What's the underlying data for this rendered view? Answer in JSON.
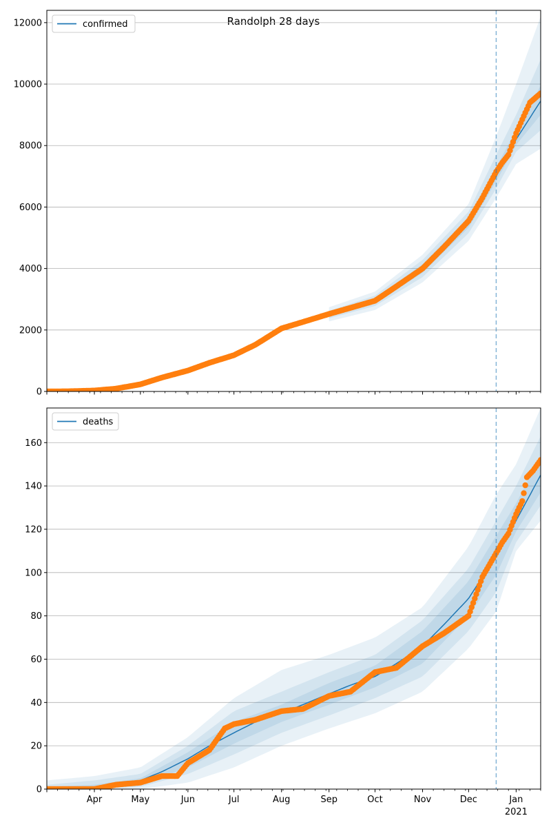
{
  "title": "Randolph 28 days",
  "chart_data": [
    {
      "type": "line",
      "panel": "confirmed",
      "title": "Randolph 28 days",
      "legend": {
        "label": "confirmed",
        "placement": "top-left"
      },
      "ylim": [
        0,
        12400
      ],
      "yticks": [
        0,
        2000,
        4000,
        6000,
        8000,
        10000,
        12000
      ],
      "grid": "horizontal",
      "forecast_start": "2020-12-19",
      "x_range": [
        "2020-03-01",
        "2021-01-17"
      ],
      "colors": {
        "model": "#1f77b4",
        "observed": "#ff7f0e",
        "band": "#1f77b4"
      },
      "model": {
        "dates": [
          "2020-03-01",
          "2020-03-15",
          "2020-04-01",
          "2020-04-15",
          "2020-05-01",
          "2020-05-15",
          "2020-06-01",
          "2020-06-15",
          "2020-07-01",
          "2020-07-15",
          "2020-08-01",
          "2020-08-15",
          "2020-09-01",
          "2020-09-15",
          "2020-10-01",
          "2020-10-15",
          "2020-11-01",
          "2020-11-15",
          "2020-12-01",
          "2020-12-10",
          "2020-12-19",
          "2021-01-01",
          "2021-01-17"
        ],
        "values": [
          0,
          5,
          20,
          80,
          200,
          400,
          650,
          900,
          1150,
          1500,
          2000,
          2250,
          2500,
          2700,
          2950,
          3400,
          4000,
          4700,
          5500,
          6200,
          7000,
          8200,
          9450
        ]
      },
      "bands": [
        {
          "dates": [
            "2020-09-01",
            "2020-10-01",
            "2020-11-01",
            "2020-12-01",
            "2020-12-19",
            "2021-01-01",
            "2021-01-17"
          ],
          "lower": [
            2280,
            2650,
            3550,
            4900,
            6300,
            7400,
            7900
          ],
          "upper": [
            2740,
            3250,
            4450,
            6100,
            8300,
            10000,
            12200
          ]
        },
        {
          "dates": [
            "2020-09-01",
            "2020-10-01",
            "2020-11-01",
            "2020-12-01",
            "2020-12-19",
            "2021-01-01",
            "2021-01-17"
          ],
          "lower": [
            2380,
            2780,
            3720,
            5150,
            6600,
            7800,
            8500
          ],
          "upper": [
            2620,
            3120,
            4280,
            5850,
            7700,
            9000,
            10800
          ]
        },
        {
          "dates": [
            "2020-09-01",
            "2020-10-01",
            "2020-11-01",
            "2020-12-01",
            "2020-12-19",
            "2021-01-01",
            "2021-01-17"
          ],
          "lower": [
            2450,
            2870,
            3860,
            5330,
            6830,
            8020,
            9000
          ],
          "upper": [
            2550,
            3030,
            4140,
            5670,
            7300,
            8500,
            9950
          ]
        }
      ],
      "observed": {
        "dates": [
          "2020-03-01",
          "2020-03-15",
          "2020-04-01",
          "2020-04-15",
          "2020-05-01",
          "2020-05-15",
          "2020-06-01",
          "2020-06-15",
          "2020-07-01",
          "2020-07-15",
          "2020-08-01",
          "2020-08-15",
          "2020-09-01",
          "2020-09-15",
          "2020-10-01",
          "2020-10-15",
          "2020-11-01",
          "2020-11-15",
          "2020-12-01",
          "2020-12-10",
          "2020-12-19",
          "2020-12-23",
          "2020-12-27",
          "2021-01-01",
          "2021-01-05",
          "2021-01-10",
          "2021-01-17"
        ],
        "values": [
          0,
          5,
          30,
          90,
          230,
          450,
          680,
          930,
          1180,
          1520,
          2050,
          2260,
          2520,
          2720,
          2950,
          3420,
          4000,
          4700,
          5550,
          6300,
          7150,
          7450,
          7700,
          8400,
          8850,
          9400,
          9700
        ]
      }
    },
    {
      "type": "line",
      "panel": "deaths",
      "legend": {
        "label": "deaths",
        "placement": "top-left"
      },
      "ylim": [
        0,
        176
      ],
      "yticks": [
        0,
        20,
        40,
        60,
        80,
        100,
        120,
        140,
        160
      ],
      "xticks": [
        "Apr",
        "May",
        "Jun",
        "Jul",
        "Aug",
        "Sep",
        "Oct",
        "Nov",
        "Dec",
        "Jan"
      ],
      "xtick_year": "2021",
      "grid": "horizontal",
      "forecast_start": "2020-12-19",
      "x_range": [
        "2020-03-01",
        "2021-01-17"
      ],
      "colors": {
        "model": "#1f77b4",
        "observed": "#ff7f0e",
        "band": "#1f77b4"
      },
      "model": {
        "dates": [
          "2020-03-01",
          "2020-04-01",
          "2020-04-15",
          "2020-05-01",
          "2020-05-15",
          "2020-06-01",
          "2020-06-15",
          "2020-07-01",
          "2020-07-15",
          "2020-08-01",
          "2020-08-15",
          "2020-09-01",
          "2020-09-15",
          "2020-10-01",
          "2020-10-15",
          "2020-11-01",
          "2020-11-15",
          "2020-12-01",
          "2020-12-10",
          "2020-12-19",
          "2021-01-01",
          "2021-01-17"
        ],
        "values": [
          0,
          1,
          2,
          4,
          8,
          14,
          20,
          26,
          31,
          35,
          39,
          44,
          48,
          52,
          58,
          66,
          76,
          88,
          98,
          108,
          124,
          145
        ]
      },
      "bands": [
        {
          "dates": [
            "2020-03-01",
            "2020-04-01",
            "2020-05-01",
            "2020-06-01",
            "2020-07-01",
            "2020-08-01",
            "2020-09-01",
            "2020-10-01",
            "2020-11-01",
            "2020-12-01",
            "2020-12-19",
            "2021-01-01",
            "2021-01-17"
          ],
          "lower": [
            0,
            0,
            0,
            3,
            10,
            20,
            28,
            35,
            45,
            65,
            82,
            110,
            124
          ],
          "upper": [
            4,
            6,
            10,
            24,
            42,
            55,
            62,
            70,
            84,
            112,
            136,
            150,
            176
          ]
        },
        {
          "dates": [
            "2020-03-01",
            "2020-04-01",
            "2020-05-01",
            "2020-06-01",
            "2020-07-01",
            "2020-08-01",
            "2020-09-01",
            "2020-10-01",
            "2020-11-01",
            "2020-12-01",
            "2020-12-19",
            "2021-01-01",
            "2021-01-17"
          ],
          "lower": [
            0,
            0,
            1,
            7,
            16,
            26,
            34,
            42,
            52,
            73,
            91,
            114,
            131
          ],
          "upper": [
            2,
            4,
            7,
            20,
            36,
            45,
            54,
            62,
            78,
            102,
            124,
            140,
            163
          ]
        },
        {
          "dates": [
            "2020-03-01",
            "2020-04-01",
            "2020-05-01",
            "2020-06-01",
            "2020-07-01",
            "2020-08-01",
            "2020-09-01",
            "2020-10-01",
            "2020-11-01",
            "2020-12-01",
            "2020-12-19",
            "2021-01-01",
            "2021-01-17"
          ],
          "lower": [
            0,
            0,
            2,
            10,
            21,
            31,
            39,
            47,
            58,
            80,
            99,
            119,
            137
          ],
          "upper": [
            1,
            2,
            5,
            17,
            31,
            39,
            49,
            57,
            73,
            96,
            117,
            132,
            154
          ]
        }
      ],
      "observed": {
        "dates": [
          "2020-03-01",
          "2020-04-01",
          "2020-04-15",
          "2020-05-01",
          "2020-05-15",
          "2020-05-25",
          "2020-06-01",
          "2020-06-15",
          "2020-06-25",
          "2020-07-01",
          "2020-07-15",
          "2020-08-01",
          "2020-08-15",
          "2020-09-01",
          "2020-09-15",
          "2020-10-01",
          "2020-10-15",
          "2020-11-01",
          "2020-11-15",
          "2020-12-01",
          "2020-12-10",
          "2020-12-19",
          "2020-12-23",
          "2020-12-27",
          "2021-01-01",
          "2021-01-05",
          "2021-01-08",
          "2021-01-12",
          "2021-01-17"
        ],
        "values": [
          0,
          0,
          2,
          3,
          6,
          6,
          12,
          18,
          28,
          30,
          32,
          36,
          37,
          43,
          45,
          54,
          56,
          66,
          72,
          80,
          98,
          109,
          114,
          118,
          127,
          133,
          144,
          147,
          152
        ]
      }
    }
  ]
}
